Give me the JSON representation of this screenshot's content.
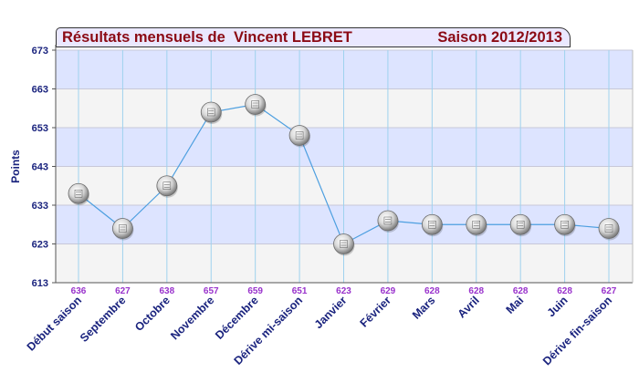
{
  "chart_data": {
    "type": "line",
    "title": "Résultats mensuels de  Vincent LEBRET",
    "subtitle": "Saison 2012/2013",
    "ylabel": "Points",
    "xlabel": "",
    "ylim": [
      613,
      673
    ],
    "yticks": [
      613,
      623,
      633,
      643,
      653,
      663,
      673
    ],
    "categories": [
      "Début saison",
      "Septembre",
      "Octobre",
      "Novembre",
      "Décembre",
      "Dérive mi-saison",
      "Janvier",
      "Février",
      "Mars",
      "Avril",
      "Mai",
      "Juin",
      "Dérive fin-saison"
    ],
    "values": [
      636,
      627,
      638,
      657,
      659,
      651,
      623,
      629,
      628,
      628,
      628,
      628,
      627
    ],
    "grid": true,
    "colors": {
      "band_blue": "#dde4ff",
      "band_grey": "#f4f4f4",
      "line": "#4d9fe0",
      "tick_text": "#1a237e",
      "data_label": "#9932cc",
      "title": "#8b0a14",
      "title_bg": "#eae8ff"
    }
  }
}
